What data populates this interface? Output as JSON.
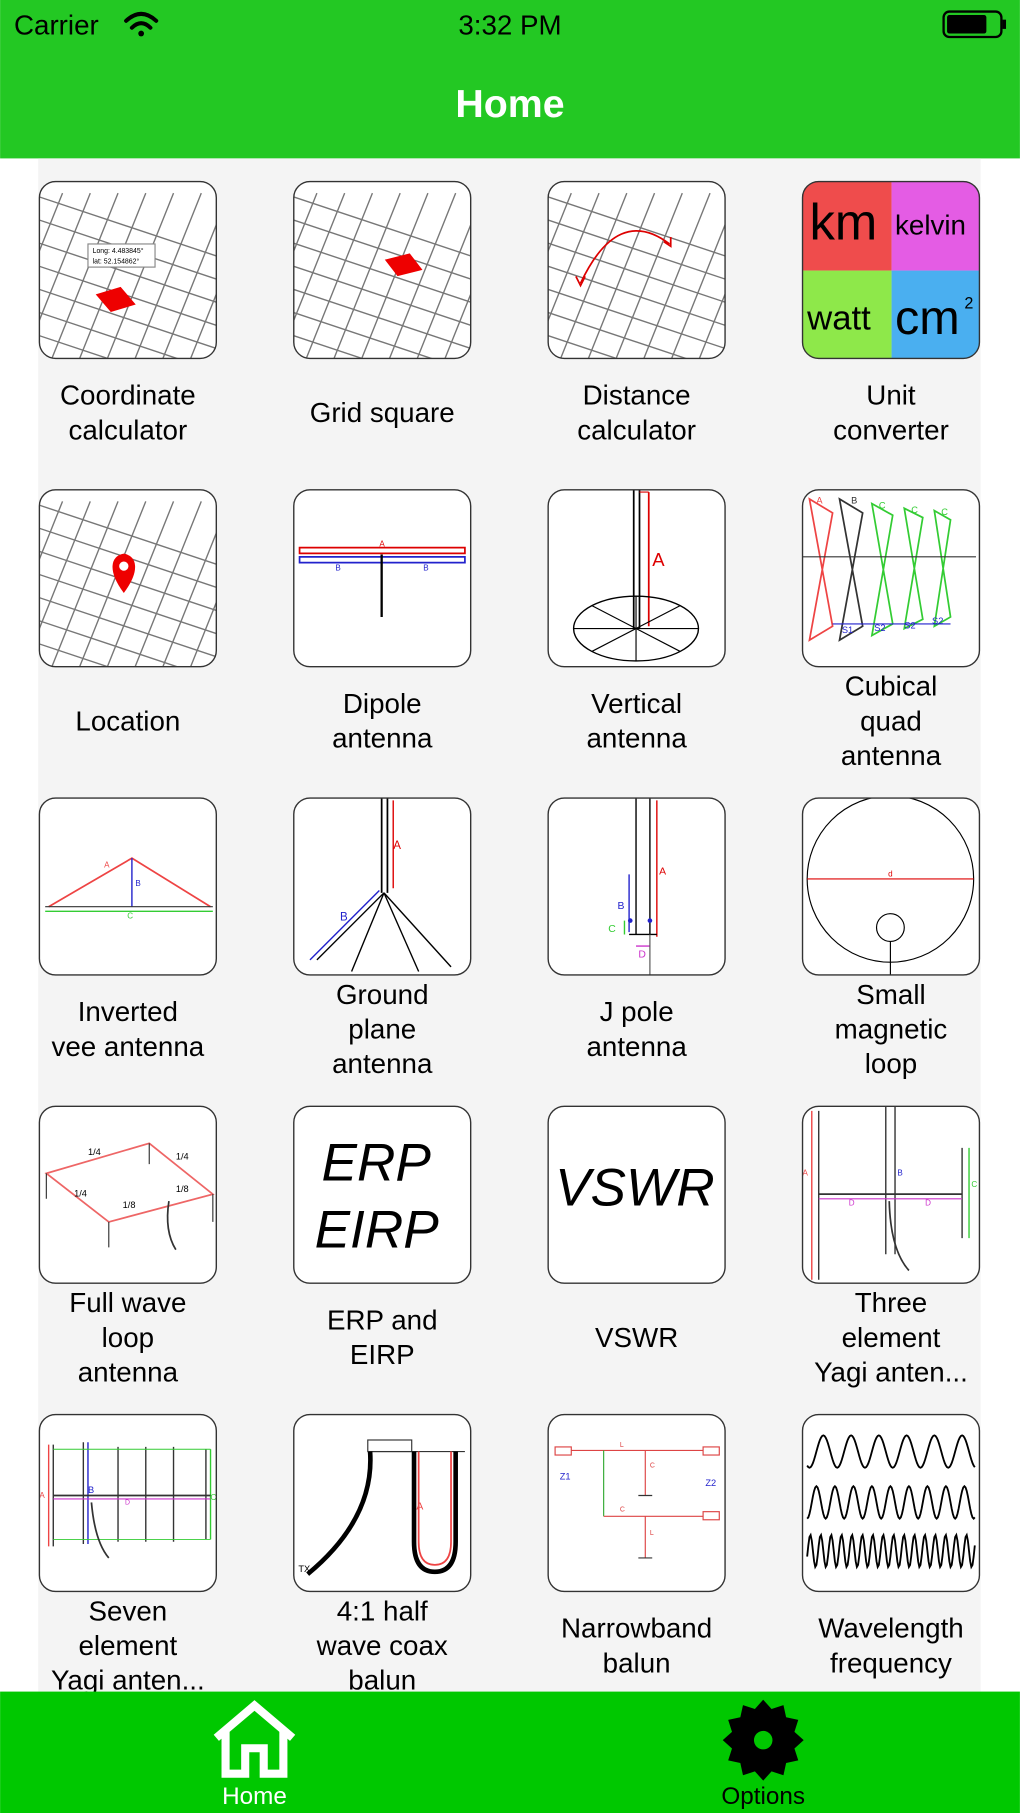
{
  "status_bar": {
    "carrier": "Carrier",
    "time": "3:32 PM"
  },
  "nav": {
    "title": "Home"
  },
  "tiles": [
    {
      "lines": [
        "Coordinate",
        "calculator"
      ],
      "icon_text": [
        "Long:  4.483845°",
        "lat:  52.154862°"
      ]
    },
    {
      "lines": [
        "Grid square"
      ]
    },
    {
      "lines": [
        "Distance",
        "calculator"
      ]
    },
    {
      "lines": [
        "Unit",
        "converter"
      ],
      "icon_text": [
        "km",
        "kelvin",
        "watt",
        "cm",
        "2"
      ]
    },
    {
      "lines": [
        "Location"
      ]
    },
    {
      "lines": [
        "Dipole",
        "antenna"
      ],
      "icon_text": [
        "A",
        "B",
        "B"
      ]
    },
    {
      "lines": [
        "Vertical",
        "antenna"
      ],
      "icon_text": [
        "A"
      ]
    },
    {
      "lines": [
        "Cubical",
        "quad",
        "antenna"
      ],
      "icon_text": [
        "A",
        "B",
        "C",
        "C",
        "C",
        "S1",
        "S2",
        "S2",
        "S2"
      ]
    },
    {
      "lines": [
        "Inverted",
        "vee antenna"
      ],
      "icon_text": [
        "A",
        "B",
        "C"
      ]
    },
    {
      "lines": [
        "Ground",
        "plane",
        "antenna"
      ],
      "icon_text": [
        "A",
        "B"
      ]
    },
    {
      "lines": [
        "J pole",
        "antenna"
      ],
      "icon_text": [
        "A",
        "B",
        "C",
        "D"
      ]
    },
    {
      "lines": [
        "Small",
        "magnetic",
        "loop"
      ],
      "icon_text": [
        "d"
      ]
    },
    {
      "lines": [
        "Full wave",
        "loop",
        "antenna"
      ],
      "icon_text": [
        "1/4",
        "1/4",
        "1/4",
        "1/8",
        "1/8"
      ]
    },
    {
      "lines": [
        "ERP and",
        "EIRP"
      ],
      "icon_text": [
        "ERP",
        "EIRP"
      ]
    },
    {
      "lines": [
        "VSWR"
      ],
      "icon_text": [
        "VSWR"
      ]
    },
    {
      "lines": [
        "Three",
        "element",
        "Yagi anten..."
      ],
      "icon_text": [
        "A",
        "B",
        "C",
        "D",
        "D"
      ]
    },
    {
      "lines": [
        "Seven",
        "element",
        "Yagi anten..."
      ],
      "icon_text": [
        "A",
        "B",
        "C",
        "D"
      ]
    },
    {
      "lines": [
        "4:1 half",
        "wave coax",
        "balun"
      ],
      "icon_text": [
        "A",
        "TX"
      ]
    },
    {
      "lines": [
        "Narrowband",
        "balun"
      ],
      "icon_text": [
        "Z1",
        "Z2",
        "L",
        "C",
        "C",
        "L"
      ]
    },
    {
      "lines": [
        "Wavelength",
        "frequency"
      ]
    }
  ],
  "tab_bar": {
    "tabs": [
      {
        "label": "Home"
      },
      {
        "label": "Options"
      }
    ]
  }
}
